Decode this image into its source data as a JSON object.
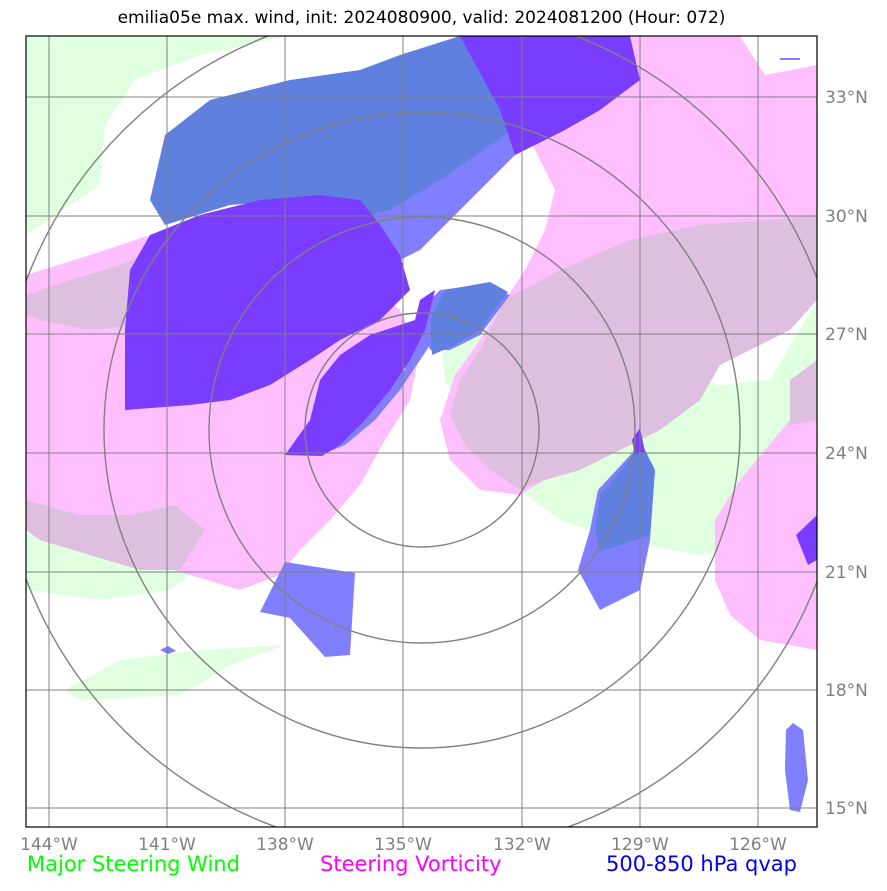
{
  "title": "emilia05e max. wind, init: 2024080900, valid: 2024081200 (Hour: 072)",
  "map": {
    "lon_ticks": [
      "144°W",
      "141°W",
      "138°W",
      "135°W",
      "132°W",
      "129°W",
      "126°W"
    ],
    "lat_ticks": [
      "33°N",
      "30°N",
      "27°N",
      "24°N",
      "21°N",
      "18°N",
      "15°N"
    ],
    "range_rings": 4,
    "colors": {
      "steering_wind": "#dfffdf",
      "steering_vorticity": "#ffbfff",
      "overlap": "#dfbfdf",
      "qvap_light": "#8080ff",
      "qvap_medium": "#6080e0",
      "qvap_dark": "#7a3dff",
      "grid": "#808080",
      "rings": "#808080"
    }
  },
  "legend": {
    "wind": "Major Steering Wind",
    "vorticity": "Steering Vorticity",
    "qvap": "500-850 hPa qvap"
  }
}
